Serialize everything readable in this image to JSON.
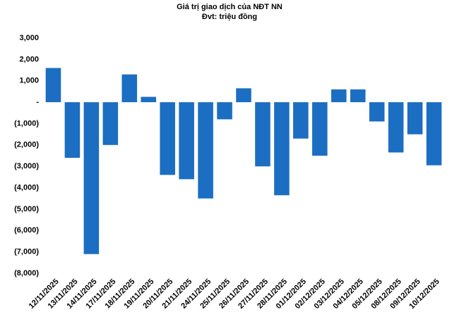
{
  "chart_data": {
    "type": "bar",
    "title": "Giá trị giao dịch của NĐT NN",
    "subtitle": "Đvt: triệu đồng",
    "categories": [
      "12/11/2025",
      "13/11/2025",
      "14/11/2025",
      "17/11/2025",
      "18/11/2025",
      "19/11/2025",
      "20/11/2025",
      "21/11/2025",
      "24/11/2025",
      "25/11/2025",
      "26/11/2025",
      "27/11/2025",
      "28/11/2025",
      "01/12/2025",
      "02/12/2025",
      "03/12/2025",
      "04/12/2025",
      "05/12/2025",
      "08/12/2025",
      "09/12/2025",
      "10/12/2025"
    ],
    "values": [
      1600,
      -2600,
      -7100,
      -2000,
      1300,
      250,
      -3400,
      -3600,
      -4500,
      -800,
      650,
      -3000,
      -4350,
      -1700,
      -2500,
      600,
      600,
      -900,
      -2350,
      -1500,
      -2950
    ],
    "color": "#1b6ec2",
    "ylim": [
      -8000,
      3000
    ],
    "yticks": [
      {
        "value": 3000,
        "label": "3,000"
      },
      {
        "value": 2000,
        "label": "2,000"
      },
      {
        "value": 1000,
        "label": "1,000"
      },
      {
        "value": 0,
        "label": "-"
      },
      {
        "value": -1000,
        "label": "(1,000)"
      },
      {
        "value": -2000,
        "label": "(2,000)"
      },
      {
        "value": -3000,
        "label": "(3,000)"
      },
      {
        "value": -4000,
        "label": "(4,000)"
      },
      {
        "value": -5000,
        "label": "(5,000)"
      },
      {
        "value": -6000,
        "label": "(6,000)"
      },
      {
        "value": -7000,
        "label": "(7,000)"
      },
      {
        "value": -8000,
        "label": "(8,000)"
      }
    ],
    "grid": false
  }
}
